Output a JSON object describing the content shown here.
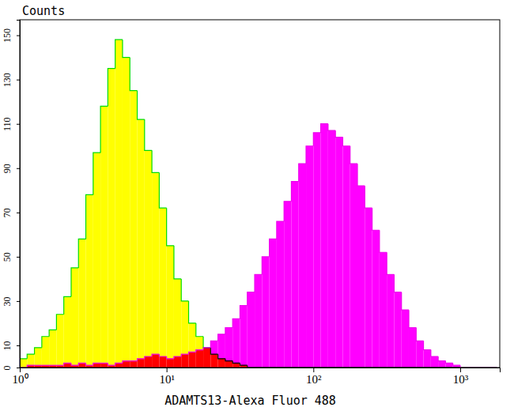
{
  "chart_data": {
    "type": "histogram",
    "x_label": "ADAMTS13-Alexa Fluor 488",
    "y_label": "Counts",
    "log": "x",
    "xlim": [
      1,
      1860
    ],
    "ylim": [
      0,
      157
    ],
    "xticks": [
      {
        "value": 1,
        "label": "10⁰"
      },
      {
        "value": 10,
        "label": "10¹"
      },
      {
        "value": 100,
        "label": "10²"
      },
      {
        "value": 1000,
        "label": "10³"
      }
    ],
    "yticks": [
      0,
      10,
      30,
      50,
      70,
      90,
      110,
      130,
      150
    ],
    "bins": [
      1,
      1.122,
      1.259,
      1.413,
      1.585,
      1.778,
      1.995,
      2.239,
      2.512,
      2.818,
      3.162,
      3.548,
      3.981,
      4.467,
      5.012,
      5.623,
      6.31,
      7.079,
      7.943,
      8.913,
      10,
      11.22,
      12.59,
      14.13,
      15.85,
      17.78,
      19.95,
      22.39,
      25.12,
      28.18,
      31.62,
      35.48,
      39.81,
      44.67,
      50.12,
      56.23,
      63.1,
      70.79,
      79.43,
      89.13,
      100,
      112.2,
      125.9,
      141.3,
      158.5,
      177.8,
      199.5,
      223.9,
      251.2,
      281.8,
      316.2,
      354.8,
      398.1,
      446.7,
      501.2,
      562.3,
      631,
      707.9,
      794.3,
      891.3,
      1000,
      1122,
      1259,
      1413,
      1585,
      1778
    ],
    "series": [
      {
        "color": "#ffff00",
        "values": [
          4,
          6,
          9,
          14,
          17,
          24,
          32,
          45,
          58,
          78,
          97,
          118,
          135,
          148,
          140,
          125,
          112,
          98,
          88,
          72,
          55,
          40,
          30,
          20,
          14,
          9,
          6,
          4,
          3,
          2,
          1,
          0,
          0,
          0,
          0,
          0,
          0,
          0,
          0,
          0,
          0,
          0,
          0,
          0,
          0,
          0,
          0,
          0,
          0,
          0,
          0,
          0,
          0,
          0,
          0,
          0,
          0,
          0,
          0,
          0,
          0,
          0,
          0,
          0,
          0
        ]
      },
      {
        "color": "#ff00ff",
        "values": [
          0,
          1,
          1,
          1,
          1,
          1,
          2,
          1,
          2,
          1,
          2,
          2,
          1,
          2,
          3,
          3,
          4,
          5,
          6,
          5,
          4,
          5,
          6,
          7,
          8,
          9,
          12,
          15,
          18,
          22,
          28,
          34,
          42,
          50,
          58,
          66,
          75,
          84,
          92,
          100,
          106,
          110,
          107,
          104,
          100,
          92,
          82,
          72,
          62,
          52,
          42,
          34,
          26,
          18,
          12,
          8,
          5,
          3,
          2,
          1,
          0,
          0,
          0,
          0,
          0
        ]
      }
    ]
  }
}
